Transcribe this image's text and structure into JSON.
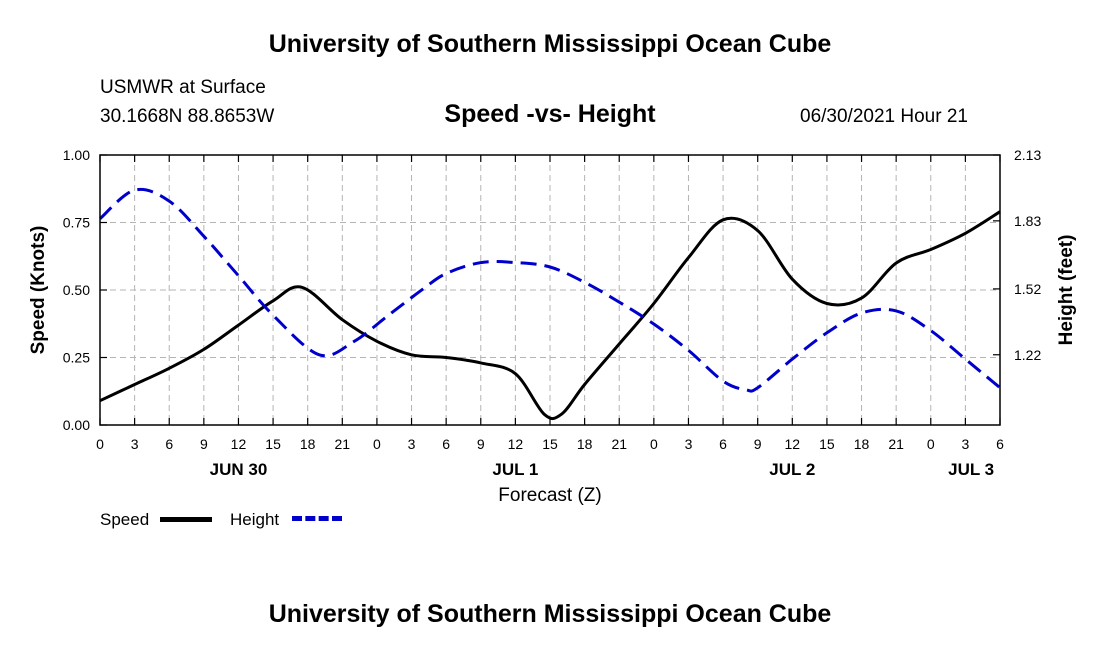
{
  "header": {
    "title": "University of Southern Mississippi Ocean Cube",
    "station": "USMWR at Surface",
    "coords": "30.1668N  88.8653W",
    "run_time": "06/30/2021 Hour 21"
  },
  "footer": {
    "title": "University of Southern Mississippi Ocean Cube"
  },
  "colors": {
    "speed": "#000000",
    "height": "#0000cc",
    "grid": "#b4b4b4"
  },
  "chart_data": {
    "type": "line",
    "title": "Speed -vs- Height",
    "xlabel": "Forecast (Z)",
    "ylabel": "Speed (Knots)",
    "y2label": "Height (feet)",
    "x_range_hours": [
      0,
      78
    ],
    "ylim": [
      0,
      1.0
    ],
    "y2lim": [
      0.9,
      2.13
    ],
    "grid": true,
    "x_tick_hours": [
      0,
      3,
      6,
      9,
      12,
      15,
      18,
      21,
      24,
      27,
      30,
      33,
      36,
      39,
      42,
      45,
      48,
      51,
      54,
      57,
      60,
      63,
      66,
      69,
      72,
      75,
      78
    ],
    "x_tick_labels": [
      "0",
      "3",
      "6",
      "9",
      "12",
      "15",
      "18",
      "21",
      "0",
      "3",
      "6",
      "9",
      "12",
      "15",
      "18",
      "21",
      "0",
      "3",
      "6",
      "9",
      "12",
      "15",
      "18",
      "21",
      "0",
      "3",
      "6"
    ],
    "y_ticks": [
      0,
      0.25,
      0.5,
      0.75,
      1.0
    ],
    "y_tick_labels": [
      "0.00",
      "0.25",
      "0.50",
      "0.75",
      "1.00"
    ],
    "y2_ticks": [
      1.22,
      1.52,
      1.83,
      2.13
    ],
    "y2_tick_labels": [
      "1.22",
      "1.52",
      "1.83",
      "2.13"
    ],
    "day_labels": [
      {
        "label": "JUN 30",
        "hour": 12
      },
      {
        "label": "JUL 1",
        "hour": 36
      },
      {
        "label": "JUL 2",
        "hour": 60
      },
      {
        "label": "JUL 3",
        "hour": 75.5
      }
    ],
    "legend": {
      "speed": "Speed",
      "height": "Height"
    },
    "series": [
      {
        "name": "Speed",
        "axis": "left",
        "style": "solid",
        "x": [
          0,
          3,
          6,
          9,
          12,
          15,
          17.5,
          21,
          24,
          27,
          30,
          33,
          36,
          38.5,
          40,
          42,
          45,
          48,
          51,
          54,
          57,
          60,
          63,
          66,
          69,
          72,
          75,
          78
        ],
        "values": [
          0.09,
          0.15,
          0.21,
          0.28,
          0.37,
          0.46,
          0.51,
          0.39,
          0.31,
          0.26,
          0.25,
          0.23,
          0.19,
          0.04,
          0.04,
          0.15,
          0.3,
          0.45,
          0.62,
          0.76,
          0.72,
          0.54,
          0.45,
          0.47,
          0.6,
          0.65,
          0.71,
          0.79
        ]
      },
      {
        "name": "Height",
        "axis": "right",
        "style": "dashed",
        "x": [
          0,
          3,
          6,
          9,
          12,
          15,
          19,
          22,
          25,
          28,
          30,
          33,
          36,
          39,
          42,
          45,
          48,
          51,
          54,
          56,
          57,
          60,
          63,
          66,
          69,
          72,
          75,
          78
        ],
        "values": [
          1.84,
          1.97,
          1.92,
          1.76,
          1.58,
          1.4,
          1.22,
          1.28,
          1.4,
          1.52,
          1.59,
          1.64,
          1.64,
          1.62,
          1.55,
          1.46,
          1.36,
          1.24,
          1.1,
          1.06,
          1.07,
          1.2,
          1.32,
          1.41,
          1.42,
          1.33,
          1.2,
          1.07
        ]
      }
    ]
  }
}
